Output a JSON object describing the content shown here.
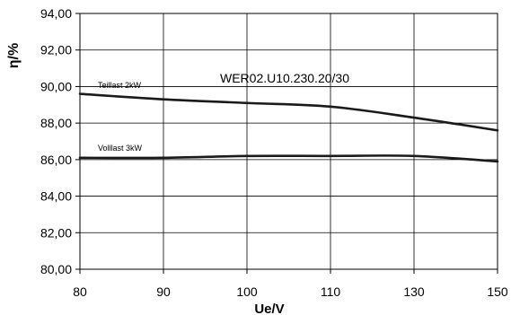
{
  "chart_data": {
    "type": "line",
    "title": "WER02.U10.230.20/30",
    "xlabel": "Ue/V",
    "ylabel": "η/%",
    "x_categories": [
      "80",
      "90",
      "100",
      "110",
      "130",
      "150"
    ],
    "ylim": [
      80,
      94
    ],
    "y_ticks": [
      "80,00",
      "82,00",
      "84,00",
      "86,00",
      "88,00",
      "90,00",
      "92,00",
      "94,00"
    ],
    "grid": true,
    "series": [
      {
        "name": "Teillast 2kW",
        "x": [
          "80",
          "90",
          "100",
          "110",
          "130",
          "150"
        ],
        "values": [
          89.6,
          89.3,
          89.1,
          88.9,
          88.3,
          87.6
        ],
        "color": "#1a1a1a"
      },
      {
        "name": "Volllast 3kW",
        "x": [
          "80",
          "90",
          "100",
          "110",
          "130",
          "150"
        ],
        "values": [
          86.1,
          86.1,
          86.2,
          86.2,
          86.2,
          85.9
        ],
        "color": "#1a1a1a"
      }
    ]
  }
}
